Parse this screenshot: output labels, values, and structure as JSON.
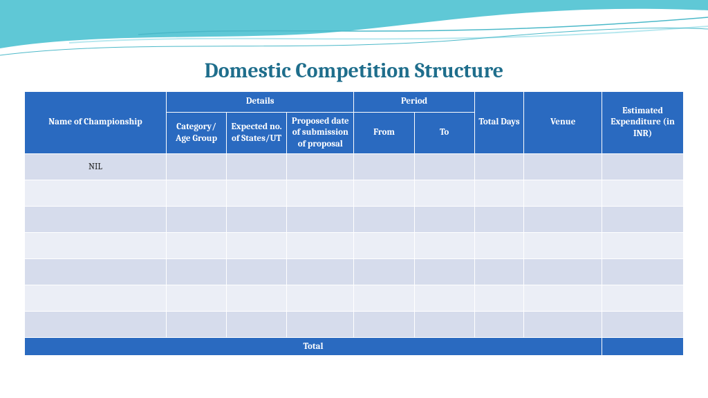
{
  "title": {
    "text": "Domestic Competition Structure",
    "color": "#1f6e8c",
    "fontsize": 30
  },
  "table": {
    "header_bg": "#2a6ac0",
    "header_color": "#ffffff",
    "row_odd_bg": "#d6dcec",
    "row_even_bg": "#ebeef6",
    "footer_bg": "#2a6ac0",
    "border_color": "#ffffff",
    "columns": {
      "name": "Name of Championship",
      "details": "Details",
      "category": "Category/ Age Group",
      "expected": "Expected no. of States/UT",
      "proposed": "Proposed date of submission of proposal",
      "period": "Period",
      "from": "From",
      "to": "To",
      "total_days": "Total Days",
      "venue": "Venue",
      "estimated": "Estimated Expenditure (in INR)"
    },
    "col_widths": {
      "name": 200,
      "category": 85,
      "expected": 85,
      "proposed": 95,
      "from": 85,
      "to": 85,
      "total_days": 70,
      "venue": 110,
      "estimated": 115
    },
    "rows": [
      [
        "NIL",
        "",
        "",
        "",
        "",
        "",
        "",
        "",
        ""
      ],
      [
        "",
        "",
        "",
        "",
        "",
        "",
        "",
        "",
        ""
      ],
      [
        "",
        "",
        "",
        "",
        "",
        "",
        "",
        "",
        ""
      ],
      [
        "",
        "",
        "",
        "",
        "",
        "",
        "",
        "",
        ""
      ],
      [
        "",
        "",
        "",
        "",
        "",
        "",
        "",
        "",
        ""
      ],
      [
        "",
        "",
        "",
        "",
        "",
        "",
        "",
        "",
        ""
      ],
      [
        "",
        "",
        "",
        "",
        "",
        "",
        "",
        "",
        ""
      ]
    ],
    "footer": {
      "label": "Total",
      "value": ""
    }
  },
  "wave": {
    "fill_main": "#5fc8d6",
    "fill_light": "#b8e8ef",
    "stroke": "#4ab8c8"
  }
}
